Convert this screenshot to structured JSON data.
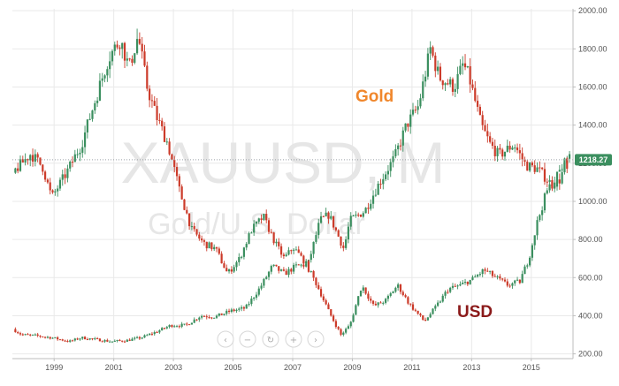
{
  "chart_data": {
    "type": "line",
    "title": "",
    "watermark": {
      "symbol": "XAUUSD, M",
      "subtitle": "Gold/U.S. Dollar"
    },
    "xlabel": "",
    "ylabel": "",
    "xlim": [
      1997.6,
      2016.4
    ],
    "ylim": [
      175,
      2010
    ],
    "y_ticks": [
      200,
      400,
      600,
      800,
      1000,
      1200,
      1400,
      1600,
      1800,
      2000
    ],
    "y_tick_labels": [
      "200.00",
      "400.00",
      "600.00",
      "800.00",
      "1000.00",
      "1200.00",
      "1400.00",
      "1600.00",
      "1800.00",
      "2000.00"
    ],
    "x_ticks": [
      1999,
      2001,
      2003,
      2005,
      2007,
      2009,
      2011,
      2013,
      2015
    ],
    "x_tick_labels": [
      "1999",
      "2001",
      "2003",
      "2005",
      "2007",
      "2009",
      "2011",
      "2013",
      "2015"
    ],
    "current_price": {
      "value": 1218.27,
      "label": "1218.27",
      "color": "#3b8f5f"
    },
    "grid": true,
    "legend": "none",
    "colors": {
      "up": "#3b8f5f",
      "down": "#cc3b2a",
      "gold_label": "#f0872c",
      "usd_label": "#8b1a1a"
    },
    "series": [
      {
        "name": "Gold",
        "label_color": "#f0872c",
        "points": [
          [
            1997.7,
            330
          ],
          [
            1998.0,
            300
          ],
          [
            1998.5,
            295
          ],
          [
            1999.0,
            285
          ],
          [
            1999.6,
            265
          ],
          [
            2000.0,
            285
          ],
          [
            2000.5,
            275
          ],
          [
            2001.0,
            265
          ],
          [
            2001.5,
            270
          ],
          [
            2002.0,
            285
          ],
          [
            2002.5,
            315
          ],
          [
            2003.0,
            350
          ],
          [
            2003.5,
            350
          ],
          [
            2004.0,
            400
          ],
          [
            2004.5,
            395
          ],
          [
            2005.0,
            425
          ],
          [
            2005.5,
            440
          ],
          [
            2006.0,
            550
          ],
          [
            2006.4,
            660
          ],
          [
            2006.8,
            620
          ],
          [
            2007.2,
            660
          ],
          [
            2007.6,
            670
          ],
          [
            2008.0,
            900
          ],
          [
            2008.3,
            930
          ],
          [
            2008.8,
            750
          ],
          [
            2009.0,
            900
          ],
          [
            2009.5,
            950
          ],
          [
            2010.0,
            1100
          ],
          [
            2010.5,
            1230
          ],
          [
            2010.9,
            1400
          ],
          [
            2011.3,
            1500
          ],
          [
            2011.7,
            1800
          ],
          [
            2012.0,
            1650
          ],
          [
            2012.5,
            1600
          ],
          [
            2012.8,
            1720
          ],
          [
            2013.0,
            1650
          ],
          [
            2013.4,
            1400
          ],
          [
            2013.7,
            1300
          ],
          [
            2014.0,
            1240
          ],
          [
            2014.5,
            1300
          ],
          [
            2014.9,
            1190
          ],
          [
            2015.3,
            1170
          ],
          [
            2015.7,
            1100
          ],
          [
            2016.0,
            1100
          ],
          [
            2016.3,
            1218
          ]
        ]
      },
      {
        "name": "USD",
        "label_color": "#8b1a1a",
        "points": [
          [
            1997.7,
            1150
          ],
          [
            1998.0,
            1200
          ],
          [
            1998.3,
            1250
          ],
          [
            1998.7,
            1180
          ],
          [
            1999.0,
            1020
          ],
          [
            1999.5,
            1150
          ],
          [
            2000.0,
            1300
          ],
          [
            2000.5,
            1550
          ],
          [
            2000.9,
            1750
          ],
          [
            2001.3,
            1850
          ],
          [
            2001.6,
            1700
          ],
          [
            2001.9,
            1870
          ],
          [
            2002.2,
            1600
          ],
          [
            2002.5,
            1450
          ],
          [
            2002.9,
            1300
          ],
          [
            2003.3,
            1050
          ],
          [
            2003.7,
            850
          ],
          [
            2004.1,
            780
          ],
          [
            2004.5,
            750
          ],
          [
            2004.9,
            620
          ],
          [
            2005.3,
            700
          ],
          [
            2005.7,
            850
          ],
          [
            2006.1,
            920
          ],
          [
            2006.5,
            780
          ],
          [
            2006.8,
            700
          ],
          [
            2007.1,
            760
          ],
          [
            2007.5,
            680
          ],
          [
            2007.9,
            560
          ],
          [
            2008.3,
            420
          ],
          [
            2008.7,
            300
          ],
          [
            2009.0,
            350
          ],
          [
            2009.4,
            560
          ],
          [
            2009.8,
            450
          ],
          [
            2010.2,
            480
          ],
          [
            2010.6,
            560
          ],
          [
            2011.0,
            460
          ],
          [
            2011.5,
            370
          ],
          [
            2011.9,
            450
          ],
          [
            2012.3,
            540
          ],
          [
            2012.7,
            560
          ],
          [
            2013.1,
            590
          ],
          [
            2013.5,
            640
          ],
          [
            2013.9,
            600
          ],
          [
            2014.3,
            560
          ],
          [
            2014.7,
            580
          ],
          [
            2015.0,
            700
          ],
          [
            2015.3,
            900
          ],
          [
            2015.6,
            1050
          ],
          [
            2015.9,
            1120
          ],
          [
            2016.2,
            1200
          ]
        ]
      }
    ]
  },
  "nav_icons": [
    "chevron-left-icon",
    "minus-icon",
    "reset-icon",
    "plus-icon",
    "chevron-right-icon"
  ],
  "nav": {
    "left": "‹",
    "minus": "−",
    "reset": "↻",
    "plus": "+",
    "right": "›"
  }
}
